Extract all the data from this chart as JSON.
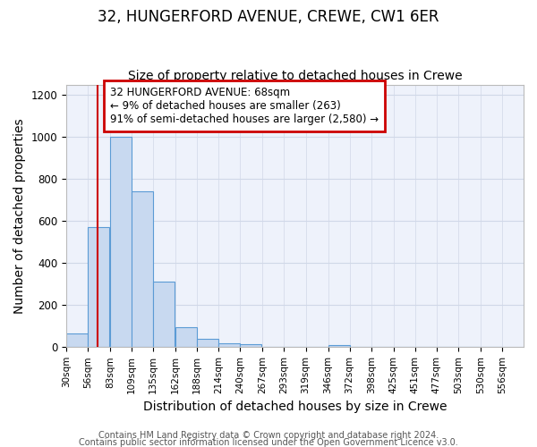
{
  "title": "32, HUNGERFORD AVENUE, CREWE, CW1 6ER",
  "subtitle": "Size of property relative to detached houses in Crewe",
  "xlabel": "Distribution of detached houses by size in Crewe",
  "ylabel": "Number of detached properties",
  "footnote1": "Contains HM Land Registry data © Crown copyright and database right 2024.",
  "footnote2": "Contains public sector information licensed under the Open Government Licence v3.0.",
  "annotation_line1": "32 HUNGERFORD AVENUE: 68sqm",
  "annotation_line2": "← 9% of detached houses are smaller (263)",
  "annotation_line3": "91% of semi-detached houses are larger (2,580) →",
  "bins": [
    "30sqm",
    "56sqm",
    "83sqm",
    "109sqm",
    "135sqm",
    "162sqm",
    "188sqm",
    "214sqm",
    "240sqm",
    "267sqm",
    "293sqm",
    "319sqm",
    "346sqm",
    "372sqm",
    "398sqm",
    "425sqm",
    "451sqm",
    "477sqm",
    "503sqm",
    "530sqm",
    "556sqm"
  ],
  "values": [
    65,
    570,
    1000,
    740,
    310,
    95,
    38,
    20,
    12,
    0,
    0,
    0,
    8,
    0,
    0,
    0,
    0,
    0,
    0,
    0
  ],
  "bar_color": "#c8d9f0",
  "bar_edge_color": "#5b9bd5",
  "bar_edge_width": 0.8,
  "grid_color": "#d0d8e8",
  "bg_color": "#eef2fb",
  "redline_x": 68,
  "redline_color": "#cc0000",
  "annotation_box_color": "#cc0000",
  "ylim": [
    0,
    1250
  ],
  "yticks": [
    0,
    200,
    400,
    600,
    800,
    1000,
    1200
  ],
  "title_fontsize": 12,
  "subtitle_fontsize": 10,
  "axis_label_fontsize": 10,
  "tick_fontsize": 7.5,
  "annot_fontsize": 8.5,
  "footnote_fontsize": 7
}
